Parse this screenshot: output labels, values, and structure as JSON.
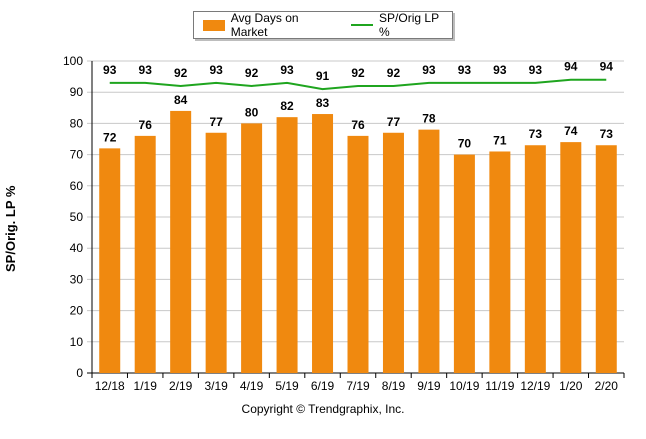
{
  "chart_data": {
    "type": "bar",
    "categories": [
      "12/18",
      "1/19",
      "2/19",
      "3/19",
      "4/19",
      "5/19",
      "6/19",
      "7/19",
      "8/19",
      "9/19",
      "10/19",
      "11/19",
      "12/19",
      "1/20",
      "2/20"
    ],
    "series": [
      {
        "name": "Avg Days on Market",
        "type": "bar",
        "color": "#f0890f",
        "values": [
          72,
          76,
          84,
          77,
          80,
          82,
          83,
          76,
          77,
          78,
          70,
          71,
          73,
          74,
          73
        ]
      },
      {
        "name": "SP/Orig LP %",
        "type": "line",
        "color": "#1fa51f",
        "values": [
          93,
          93,
          92,
          93,
          92,
          93,
          91,
          92,
          92,
          93,
          93,
          93,
          93,
          94,
          94
        ]
      }
    ],
    "ylabel": "SP/Orig. LP %",
    "xlabel": "",
    "ylim": [
      0,
      100
    ],
    "yticks": [
      "0",
      "10",
      "20",
      "30",
      "40",
      "50",
      "60",
      "70",
      "80",
      "90",
      "100"
    ],
    "grid": true,
    "legend_position": "top-center"
  },
  "footer": {
    "copyright": "Copyright © Trendgraphix, Inc."
  }
}
